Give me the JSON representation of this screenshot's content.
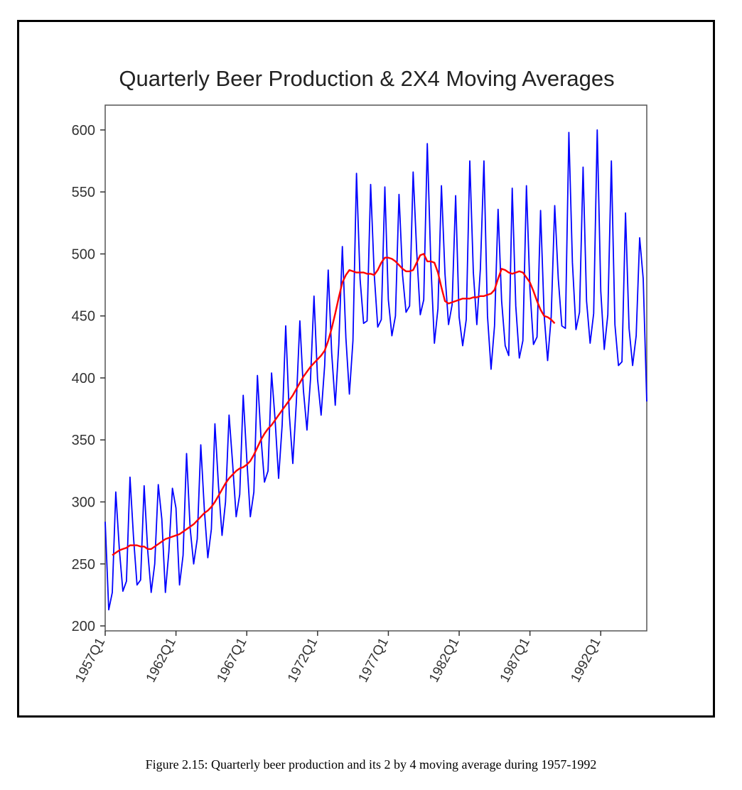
{
  "caption": "Figure 2.15: Quarterly beer production and its 2 by 4 moving average during 1957-1992",
  "chart_data": {
    "type": "line",
    "title": "Quarterly Beer Production & 2X4 Moving Averages",
    "xlabel": "",
    "ylabel": "",
    "x_start": "1957Q1",
    "x_end": "1995Q2",
    "x_ticks": [
      "1957Q1",
      "1962Q1",
      "1967Q1",
      "1972Q1",
      "1977Q1",
      "1982Q1",
      "1987Q1",
      "1992Q1"
    ],
    "y_ticks": [
      200,
      250,
      300,
      350,
      400,
      450,
      500,
      550,
      600
    ],
    "ylim": [
      196,
      620
    ],
    "grid": false,
    "colors": {
      "production": "#0000ff",
      "moving_average": "#ff0000"
    },
    "series": [
      {
        "key": "production",
        "values": [
          284,
          213,
          227,
          308,
          262,
          228,
          236,
          320,
          272,
          233,
          237,
          313,
          261,
          227,
          250,
          314,
          286,
          227,
          260,
          311,
          295,
          233,
          257,
          339,
          279,
          250,
          270,
          346,
          294,
          255,
          278,
          363,
          313,
          273,
          300,
          370,
          331,
          288,
          306,
          386,
          335,
          288,
          308,
          402,
          353,
          316,
          325,
          404,
          366,
          319,
          362,
          442,
          371,
          331,
          380,
          446,
          390,
          358,
          399,
          466,
          399,
          370,
          410,
          487,
          420,
          378,
          427,
          506,
          432,
          387,
          430,
          565,
          480,
          444,
          446,
          556,
          484,
          441,
          447,
          554,
          463,
          434,
          450,
          548,
          483,
          453,
          458,
          566,
          502,
          451,
          463,
          589,
          492,
          428,
          456,
          555,
          484,
          443,
          459,
          547,
          449,
          426,
          447,
          575,
          485,
          443,
          488,
          575,
          450,
          407,
          442,
          536,
          462,
          426,
          418,
          553,
          458,
          416,
          430,
          555,
          472,
          427,
          433,
          535,
          451,
          414,
          449,
          539,
          480,
          442,
          440,
          598,
          493,
          439,
          453,
          570,
          462,
          428,
          452,
          600,
          470,
          423,
          451,
          575,
          443,
          410,
          413,
          533,
          440,
          410,
          434,
          513,
          480,
          381
        ]
      },
      {
        "key": "moving_average",
        "start_index": 2,
        "values": [
          257,
          259,
          261,
          262,
          263,
          265,
          265,
          265,
          264,
          264,
          262,
          262,
          264,
          266,
          268,
          270,
          271,
          272,
          273,
          274,
          276,
          278,
          280,
          282,
          285,
          288,
          291,
          293,
          296,
          300,
          305,
          310,
          315,
          319,
          322,
          325,
          327,
          328,
          330,
          333,
          338,
          344,
          350,
          355,
          359,
          362,
          366,
          370,
          374,
          378,
          382,
          386,
          391,
          396,
          401,
          405,
          409,
          412,
          415,
          418,
          422,
          430,
          440,
          452,
          465,
          477,
          483,
          487,
          486,
          485,
          485,
          485,
          484,
          484,
          483,
          487,
          493,
          497,
          497,
          496,
          494,
          491,
          488,
          486,
          486,
          487,
          493,
          499,
          500,
          494,
          494,
          493,
          485,
          473,
          462,
          460,
          461,
          462,
          463,
          464,
          464,
          464,
          465,
          465,
          466,
          466,
          467,
          468,
          471,
          480,
          488,
          487,
          485,
          484,
          485,
          486,
          485,
          481,
          477,
          470,
          462,
          455,
          450,
          449,
          447,
          444
        ]
      }
    ]
  }
}
